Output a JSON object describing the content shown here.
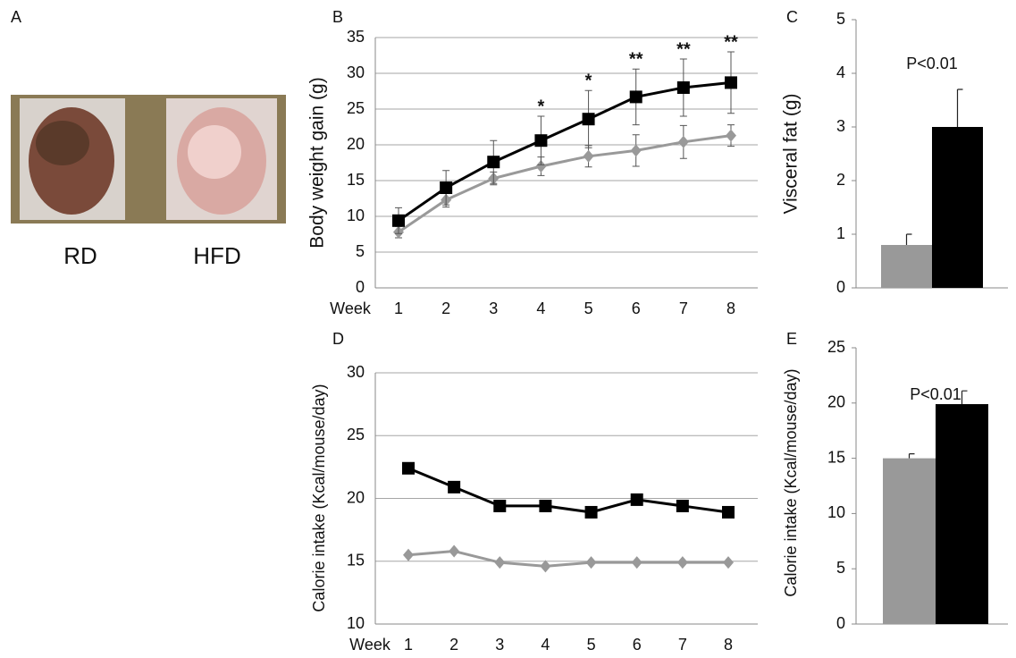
{
  "photo": {
    "panel_label": "A",
    "labels": [
      "RD",
      "HFD"
    ]
  },
  "chart_data": [
    {
      "type": "line",
      "panel_label": "B",
      "y_label": "Body weight gain (g)",
      "x_label": "Week",
      "categories": [
        "1",
        "2",
        "3",
        "4",
        "5",
        "6",
        "7",
        "8"
      ],
      "ylim": [
        0,
        35
      ],
      "yticks": [
        0,
        5,
        10,
        15,
        20,
        25,
        30,
        35
      ],
      "grid": true,
      "series": [
        {
          "color": "#999999",
          "marker": "diamond",
          "values": [
            7.8,
            12.3,
            15.3,
            17.0,
            18.4,
            19.2,
            20.4,
            21.3
          ],
          "errors": [
            0.8,
            1.0,
            0.9,
            1.3,
            1.5,
            2.2,
            2.3,
            1.5
          ]
        },
        {
          "color": "#000000",
          "marker": "square",
          "values": [
            9.4,
            14.0,
            17.6,
            20.6,
            23.6,
            26.7,
            28.0,
            28.7
          ],
          "errors": [
            1.8,
            2.4,
            3.0,
            3.4,
            4.0,
            3.9,
            4.0,
            4.3
          ]
        }
      ],
      "significance": [
        null,
        null,
        null,
        "*",
        "*",
        "**",
        "**",
        "**"
      ]
    },
    {
      "type": "bar",
      "panel_label": "C",
      "y_label": "Visceral fat (g)",
      "annotation": "P<0.01",
      "ylim": [
        0,
        5
      ],
      "yticks": [
        0,
        1,
        2,
        3,
        4,
        5
      ],
      "grid": false,
      "values": [
        0.8,
        3.0
      ],
      "errors": [
        0.2,
        0.7
      ],
      "colors": [
        "#999999",
        "#000000"
      ]
    },
    {
      "type": "line",
      "panel_label": "D",
      "y_label": "Calorie intake (Kcal/mouse/day)",
      "x_label": "Week",
      "categories": [
        "1",
        "2",
        "3",
        "4",
        "5",
        "6",
        "7",
        "8"
      ],
      "ylim": [
        10,
        30
      ],
      "yticks": [
        10,
        15,
        20,
        25,
        30
      ],
      "grid": true,
      "series": [
        {
          "color": "#999999",
          "marker": "diamond",
          "values": [
            15.5,
            15.8,
            14.9,
            14.6,
            14.9,
            14.9,
            14.9,
            14.9
          ]
        },
        {
          "color": "#000000",
          "marker": "square",
          "values": [
            22.4,
            20.9,
            19.4,
            19.4,
            18.9,
            19.9,
            19.4,
            18.9
          ]
        }
      ]
    },
    {
      "type": "bar",
      "panel_label": "E",
      "y_label": "Calorie intake (Kcal/mouse/day)",
      "annotation": "P<0.01",
      "ylim": [
        0,
        25
      ],
      "yticks": [
        0,
        5,
        10,
        15,
        20,
        25
      ],
      "grid": false,
      "values": [
        15.0,
        19.9
      ],
      "errors": [
        0.4,
        1.2
      ],
      "colors": [
        "#999999",
        "#000000"
      ]
    }
  ]
}
